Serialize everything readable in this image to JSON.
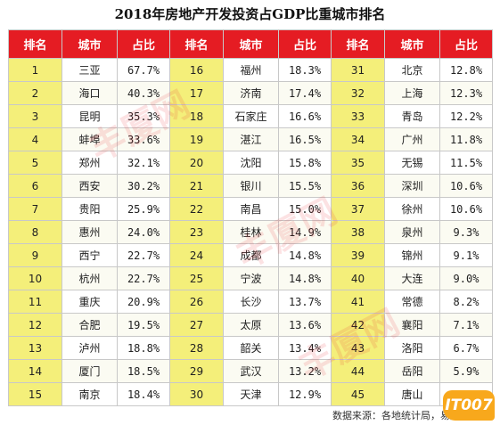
{
  "title": "2018年房地产开发投资占GDP比重城市排名",
  "headers": {
    "rank": "排名",
    "city": "城市",
    "share": "占比"
  },
  "columns": [
    [
      {
        "rank": "1",
        "city": "三亚",
        "share": "67.7%"
      },
      {
        "rank": "2",
        "city": "海口",
        "share": "40.3%"
      },
      {
        "rank": "3",
        "city": "昆明",
        "share": "35.3%"
      },
      {
        "rank": "4",
        "city": "蚌埠",
        "share": "33.6%"
      },
      {
        "rank": "5",
        "city": "郑州",
        "share": "32.1%"
      },
      {
        "rank": "6",
        "city": "西安",
        "share": "30.2%"
      },
      {
        "rank": "7",
        "city": "贵阳",
        "share": "25.9%"
      },
      {
        "rank": "8",
        "city": "惠州",
        "share": "24.0%"
      },
      {
        "rank": "9",
        "city": "西宁",
        "share": "22.7%"
      },
      {
        "rank": "10",
        "city": "杭州",
        "share": "22.7%"
      },
      {
        "rank": "11",
        "city": "重庆",
        "share": "20.9%"
      },
      {
        "rank": "12",
        "city": "合肥",
        "share": "19.5%"
      },
      {
        "rank": "13",
        "city": "泸州",
        "share": "18.8%"
      },
      {
        "rank": "14",
        "city": "厦门",
        "share": "18.5%"
      },
      {
        "rank": "15",
        "city": "南京",
        "share": "18.4%"
      }
    ],
    [
      {
        "rank": "16",
        "city": "福州",
        "share": "18.3%"
      },
      {
        "rank": "17",
        "city": "济南",
        "share": "17.4%"
      },
      {
        "rank": "18",
        "city": "石家庄",
        "share": "16.6%"
      },
      {
        "rank": "19",
        "city": "湛江",
        "share": "16.5%"
      },
      {
        "rank": "20",
        "city": "沈阳",
        "share": "15.8%"
      },
      {
        "rank": "21",
        "city": "银川",
        "share": "15.5%"
      },
      {
        "rank": "22",
        "city": "南昌",
        "share": "15.0%"
      },
      {
        "rank": "23",
        "city": "桂林",
        "share": "14.9%"
      },
      {
        "rank": "24",
        "city": "成都",
        "share": "14.8%"
      },
      {
        "rank": "25",
        "city": "宁波",
        "share": "14.8%"
      },
      {
        "rank": "26",
        "city": "长沙",
        "share": "13.7%"
      },
      {
        "rank": "27",
        "city": "太原",
        "share": "13.6%"
      },
      {
        "rank": "28",
        "city": "韶关",
        "share": "13.4%"
      },
      {
        "rank": "29",
        "city": "武汉",
        "share": "13.2%"
      },
      {
        "rank": "30",
        "city": "天津",
        "share": "12.9%"
      }
    ],
    [
      {
        "rank": "31",
        "city": "北京",
        "share": "12.8%"
      },
      {
        "rank": "32",
        "city": "上海",
        "share": "12.3%"
      },
      {
        "rank": "33",
        "city": "青岛",
        "share": "12.2%"
      },
      {
        "rank": "34",
        "city": "广州",
        "share": "11.8%"
      },
      {
        "rank": "35",
        "city": "无锡",
        "share": "11.5%"
      },
      {
        "rank": "36",
        "city": "深圳",
        "share": "10.6%"
      },
      {
        "rank": "37",
        "city": "徐州",
        "share": "10.6%"
      },
      {
        "rank": "38",
        "city": "泉州",
        "share": "9.3%"
      },
      {
        "rank": "39",
        "city": "锦州",
        "share": "9.1%"
      },
      {
        "rank": "40",
        "city": "大连",
        "share": "9.0%"
      },
      {
        "rank": "41",
        "city": "常德",
        "share": "8.2%"
      },
      {
        "rank": "42",
        "city": "襄阳",
        "share": "7.1%"
      },
      {
        "rank": "43",
        "city": "洛阳",
        "share": "6.7%"
      },
      {
        "rank": "44",
        "city": "岳阳",
        "share": "5.9%"
      },
      {
        "rank": "45",
        "city": "唐山",
        "share": "5.4%"
      }
    ]
  ],
  "source": "数据来源：各地统计局，易居研究院",
  "watermark_text": "丰厦网",
  "logo_text": "IT007",
  "colors": {
    "header_bg": "#e51c23",
    "rank_bg": "#f4ef7a",
    "logo_bg": "#f8a81c"
  },
  "chart_data": {
    "type": "table",
    "title": "2018年房地产开发投资占GDP比重城市排名",
    "columns": [
      "排名",
      "城市",
      "占比"
    ],
    "rows": [
      [
        1,
        "三亚",
        "67.7%"
      ],
      [
        2,
        "海口",
        "40.3%"
      ],
      [
        3,
        "昆明",
        "35.3%"
      ],
      [
        4,
        "蚌埠",
        "33.6%"
      ],
      [
        5,
        "郑州",
        "32.1%"
      ],
      [
        6,
        "西安",
        "30.2%"
      ],
      [
        7,
        "贵阳",
        "25.9%"
      ],
      [
        8,
        "惠州",
        "24.0%"
      ],
      [
        9,
        "西宁",
        "22.7%"
      ],
      [
        10,
        "杭州",
        "22.7%"
      ],
      [
        11,
        "重庆",
        "20.9%"
      ],
      [
        12,
        "合肥",
        "19.5%"
      ],
      [
        13,
        "泸州",
        "18.8%"
      ],
      [
        14,
        "厦门",
        "18.5%"
      ],
      [
        15,
        "南京",
        "18.4%"
      ],
      [
        16,
        "福州",
        "18.3%"
      ],
      [
        17,
        "济南",
        "17.4%"
      ],
      [
        18,
        "石家庄",
        "16.6%"
      ],
      [
        19,
        "湛江",
        "16.5%"
      ],
      [
        20,
        "沈阳",
        "15.8%"
      ],
      [
        21,
        "银川",
        "15.5%"
      ],
      [
        22,
        "南昌",
        "15.0%"
      ],
      [
        23,
        "桂林",
        "14.9%"
      ],
      [
        24,
        "成都",
        "14.8%"
      ],
      [
        25,
        "宁波",
        "14.8%"
      ],
      [
        26,
        "长沙",
        "13.7%"
      ],
      [
        27,
        "太原",
        "13.6%"
      ],
      [
        28,
        "韶关",
        "13.4%"
      ],
      [
        29,
        "武汉",
        "13.2%"
      ],
      [
        30,
        "天津",
        "12.9%"
      ],
      [
        31,
        "北京",
        "12.8%"
      ],
      [
        32,
        "上海",
        "12.3%"
      ],
      [
        33,
        "青岛",
        "12.2%"
      ],
      [
        34,
        "广州",
        "11.8%"
      ],
      [
        35,
        "无锡",
        "11.5%"
      ],
      [
        36,
        "深圳",
        "10.6%"
      ],
      [
        37,
        "徐州",
        "10.6%"
      ],
      [
        38,
        "泉州",
        "9.3%"
      ],
      [
        39,
        "锦州",
        "9.1%"
      ],
      [
        40,
        "大连",
        "9.0%"
      ],
      [
        41,
        "常德",
        "8.2%"
      ],
      [
        42,
        "襄阳",
        "7.1%"
      ],
      [
        43,
        "洛阳",
        "6.7%"
      ],
      [
        44,
        "岳阳",
        "5.9%"
      ],
      [
        45,
        "唐山",
        "5.4%"
      ]
    ]
  }
}
